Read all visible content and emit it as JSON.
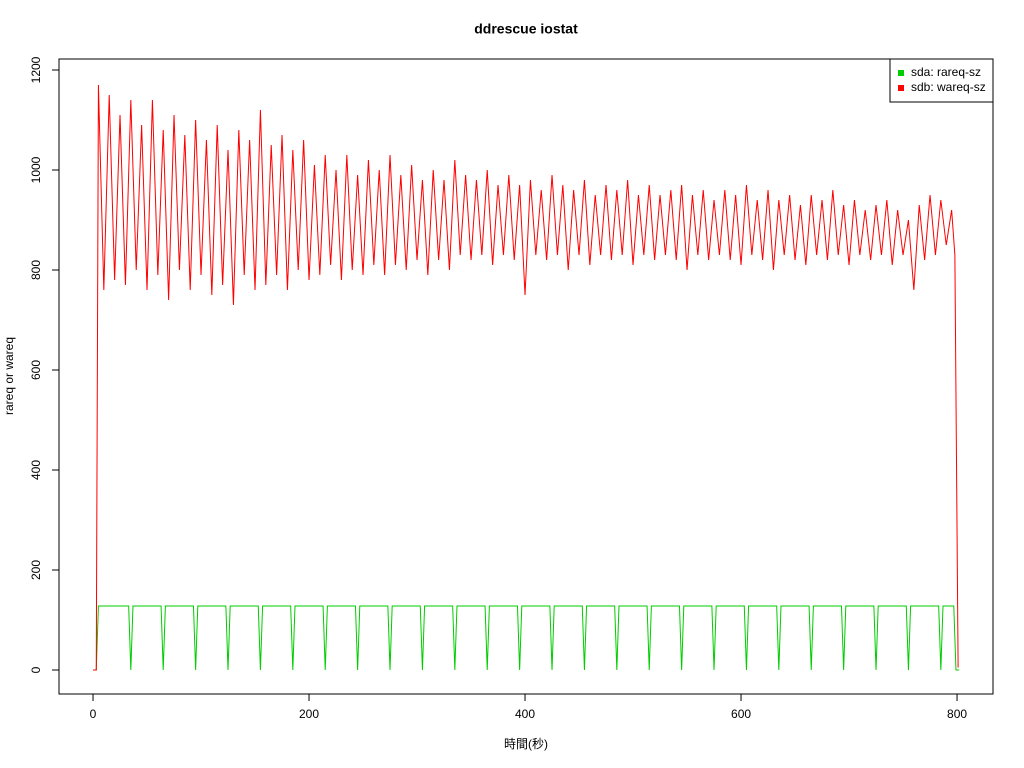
{
  "chart_data": {
    "type": "line",
    "title": "ddrescue iostat",
    "xlabel": "時間(秒)",
    "ylabel": "rareq or wareq",
    "xlim": [
      -31.5,
      833.3
    ],
    "ylim": [
      -48,
      1222
    ],
    "xticks": [
      0,
      200,
      400,
      600,
      800
    ],
    "yticks": [
      0,
      200,
      400,
      600,
      800,
      1000,
      1200
    ],
    "legend": "upper right",
    "series": [
      {
        "name": "sda: rareq-sz",
        "color": "#00cd00",
        "x": [
          0,
          3,
          5,
          33,
          35,
          37,
          63,
          65,
          67,
          93,
          95,
          97,
          123,
          125,
          127,
          153,
          155,
          157,
          183,
          185,
          187,
          213,
          215,
          217,
          243,
          245,
          247,
          273,
          275,
          277,
          303,
          305,
          307,
          333,
          335,
          337,
          363,
          365,
          367,
          393,
          395,
          397,
          423,
          425,
          427,
          453,
          455,
          457,
          483,
          485,
          487,
          513,
          515,
          517,
          543,
          545,
          547,
          573,
          575,
          577,
          603,
          605,
          607,
          633,
          635,
          637,
          663,
          665,
          667,
          693,
          695,
          697,
          723,
          725,
          727,
          753,
          755,
          757,
          783,
          785,
          787,
          797,
          799,
          802
        ],
        "values": [
          0,
          0,
          128,
          128,
          0,
          128,
          128,
          0,
          128,
          128,
          0,
          128,
          128,
          0,
          128,
          128,
          0,
          128,
          128,
          0,
          128,
          128,
          0,
          128,
          128,
          0,
          128,
          128,
          0,
          128,
          128,
          0,
          128,
          128,
          0,
          128,
          128,
          0,
          128,
          128,
          0,
          128,
          128,
          0,
          128,
          128,
          0,
          128,
          128,
          0,
          128,
          128,
          0,
          128,
          128,
          0,
          128,
          128,
          0,
          128,
          128,
          0,
          128,
          128,
          0,
          128,
          128,
          0,
          128,
          128,
          0,
          128,
          128,
          0,
          128,
          128,
          0,
          128,
          128,
          0,
          128,
          128,
          0,
          0
        ]
      },
      {
        "name": "sdb: wareq-sz",
        "color": "#ff0000",
        "x": [
          0,
          3,
          5,
          10,
          15,
          20,
          25,
          30,
          35,
          40,
          45,
          50,
          55,
          60,
          65,
          70,
          75,
          80,
          85,
          90,
          95,
          100,
          105,
          110,
          115,
          120,
          125,
          130,
          135,
          140,
          145,
          150,
          155,
          160,
          165,
          170,
          175,
          180,
          185,
          190,
          195,
          200,
          205,
          210,
          215,
          220,
          225,
          230,
          235,
          240,
          245,
          250,
          255,
          260,
          265,
          270,
          275,
          280,
          285,
          290,
          295,
          300,
          305,
          310,
          315,
          320,
          325,
          330,
          335,
          340,
          345,
          350,
          355,
          360,
          365,
          370,
          375,
          380,
          385,
          390,
          395,
          400,
          405,
          410,
          415,
          420,
          425,
          430,
          435,
          440,
          445,
          450,
          455,
          460,
          465,
          470,
          475,
          480,
          485,
          490,
          495,
          500,
          505,
          510,
          515,
          520,
          525,
          530,
          535,
          540,
          545,
          550,
          555,
          560,
          565,
          570,
          575,
          580,
          585,
          590,
          595,
          600,
          605,
          610,
          615,
          620,
          625,
          630,
          635,
          640,
          645,
          650,
          655,
          660,
          665,
          670,
          675,
          680,
          685,
          690,
          695,
          700,
          705,
          710,
          715,
          720,
          725,
          730,
          735,
          740,
          745,
          750,
          755,
          760,
          765,
          770,
          775,
          780,
          785,
          790,
          795,
          798,
          801
        ],
        "values": [
          0,
          0,
          1170,
          760,
          1150,
          780,
          1110,
          770,
          1140,
          800,
          1090,
          760,
          1140,
          790,
          1080,
          740,
          1110,
          800,
          1070,
          760,
          1100,
          790,
          1060,
          750,
          1090,
          770,
          1040,
          730,
          1080,
          790,
          1060,
          760,
          1120,
          770,
          1050,
          790,
          1070,
          760,
          1040,
          800,
          1060,
          780,
          1010,
          790,
          1030,
          810,
          1000,
          780,
          1030,
          800,
          990,
          790,
          1020,
          810,
          1000,
          790,
          1030,
          810,
          990,
          800,
          1010,
          820,
          980,
          790,
          1000,
          820,
          980,
          800,
          1020,
          830,
          990,
          820,
          980,
          830,
          1000,
          810,
          970,
          830,
          990,
          820,
          970,
          750,
          980,
          830,
          960,
          820,
          990,
          830,
          970,
          800,
          960,
          830,
          980,
          810,
          950,
          830,
          970,
          820,
          960,
          830,
          980,
          810,
          950,
          830,
          970,
          820,
          950,
          830,
          960,
          820,
          970,
          800,
          950,
          830,
          960,
          820,
          940,
          830,
          960,
          820,
          950,
          810,
          970,
          830,
          940,
          820,
          960,
          800,
          940,
          830,
          950,
          820,
          930,
          810,
          950,
          830,
          940,
          820,
          960,
          830,
          930,
          810,
          940,
          830,
          920,
          820,
          930,
          830,
          940,
          810,
          920,
          830,
          900,
          760,
          930,
          820,
          950,
          830,
          940,
          850,
          920,
          830,
          5
        ]
      }
    ]
  }
}
